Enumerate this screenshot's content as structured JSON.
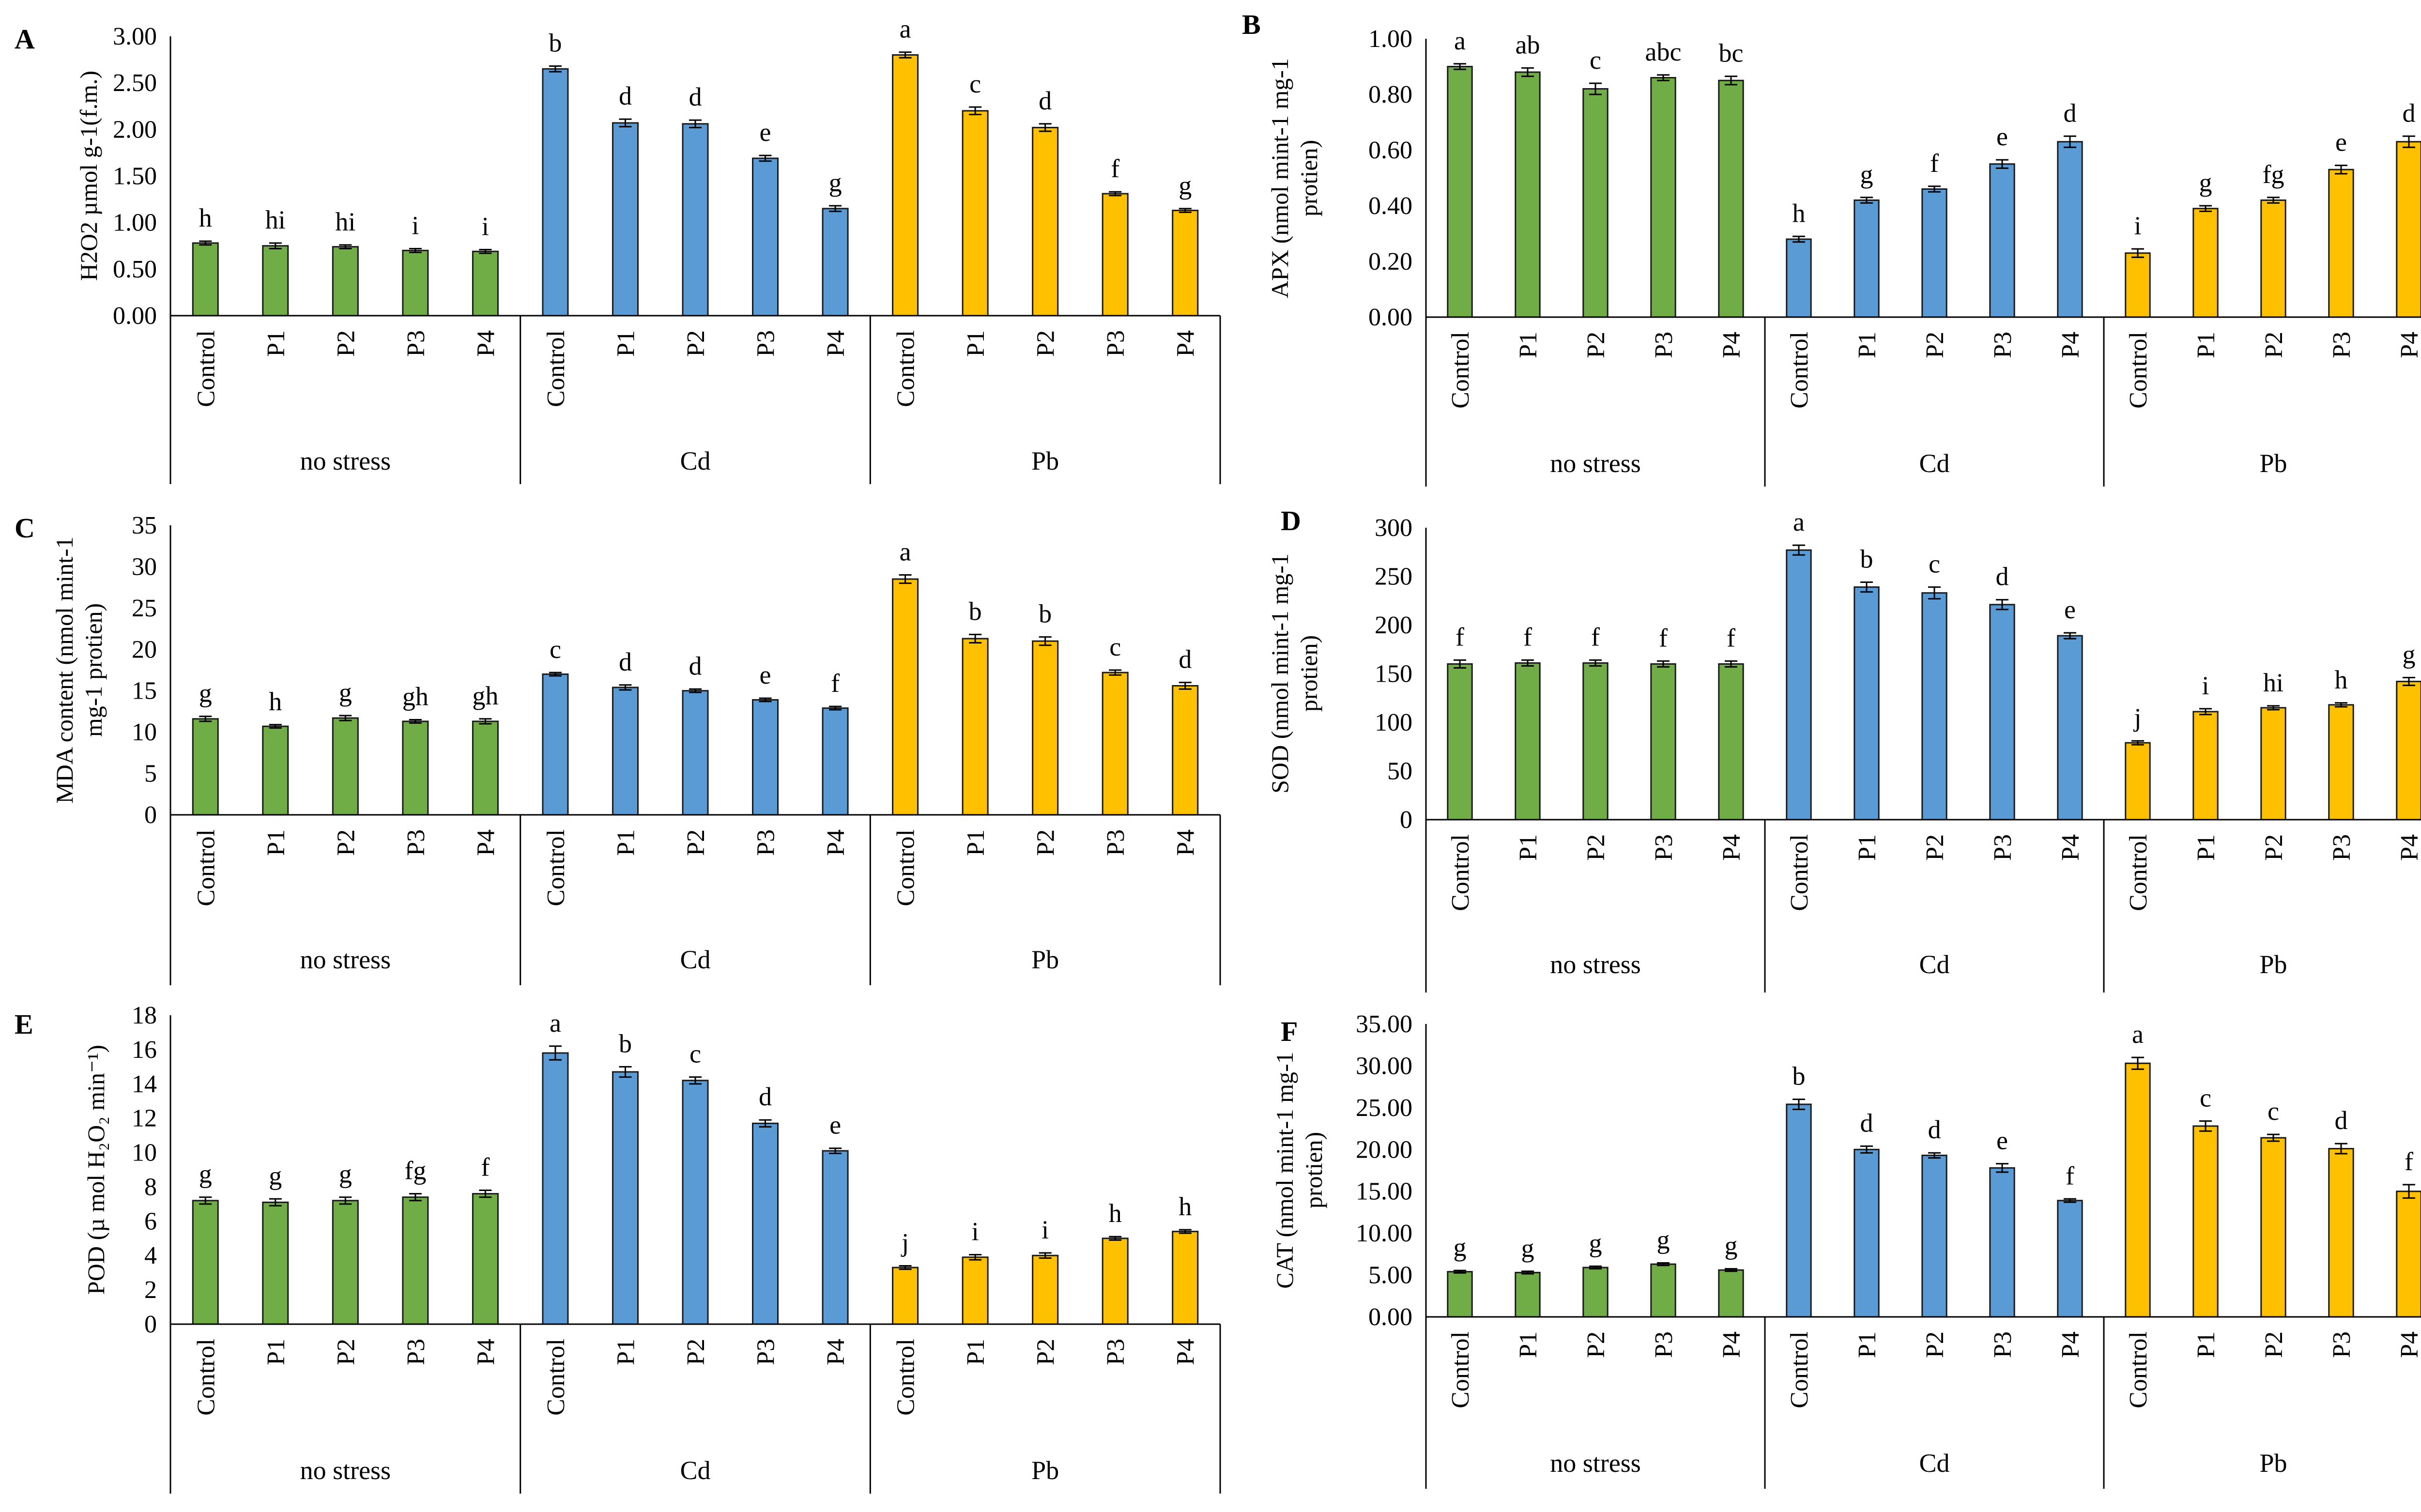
{
  "colors": {
    "no_stress": "#70AD47",
    "Cd": "#5B9BD5",
    "Pb": "#FFC000",
    "bar_edge": "#1a1a1a",
    "axis": "#000000"
  },
  "chart_data": [
    {
      "id": "A",
      "type": "bar",
      "panel_label": "A",
      "ylabel_lines": [
        "H2O2  µmol g-1(f.m.)"
      ],
      "yticks": [
        "0.00",
        "0.50",
        "1.00",
        "1.50",
        "2.00",
        "2.50",
        "3.00"
      ],
      "ylim": [
        0,
        3
      ],
      "categories": [
        "Control",
        "P1",
        "P2",
        "P3",
        "P4"
      ],
      "groups": [
        "no stress",
        "Cd",
        "Pb"
      ],
      "series": [
        {
          "name": "no stress",
          "values": [
            0.78,
            0.75,
            0.74,
            0.7,
            0.69
          ],
          "errors": [
            0.02,
            0.03,
            0.02,
            0.02,
            0.02
          ],
          "letters": [
            "h",
            "hi",
            "hi",
            "i",
            "i"
          ]
        },
        {
          "name": "Cd",
          "values": [
            2.65,
            2.07,
            2.06,
            1.69,
            1.15
          ],
          "errors": [
            0.03,
            0.04,
            0.04,
            0.03,
            0.03
          ],
          "letters": [
            "b",
            "d",
            "d",
            "e",
            "g"
          ]
        },
        {
          "name": "Pb",
          "values": [
            2.8,
            2.2,
            2.02,
            1.31,
            1.13
          ],
          "errors": [
            0.03,
            0.04,
            0.04,
            0.02,
            0.02
          ],
          "letters": [
            "a",
            "c",
            "d",
            "f",
            "g"
          ]
        }
      ]
    },
    {
      "id": "B",
      "type": "bar",
      "panel_label": "B",
      "ylabel_lines": [
        "APX (nmol mint-1 mg-1",
        "protien)"
      ],
      "yticks": [
        "0.00",
        "0.20",
        "0.40",
        "0.60",
        "0.80",
        "1.00"
      ],
      "ylim": [
        0,
        1
      ],
      "categories": [
        "Control",
        "P1",
        "P2",
        "P3",
        "P4"
      ],
      "groups": [
        "no stress",
        "Cd",
        "Pb"
      ],
      "series": [
        {
          "name": "no stress",
          "values": [
            0.9,
            0.88,
            0.82,
            0.86,
            0.85
          ],
          "errors": [
            0.01,
            0.015,
            0.02,
            0.01,
            0.015
          ],
          "letters": [
            "a",
            "ab",
            "c",
            "abc",
            "bc"
          ]
        },
        {
          "name": "Cd",
          "values": [
            0.28,
            0.42,
            0.46,
            0.55,
            0.63
          ],
          "errors": [
            0.01,
            0.01,
            0.01,
            0.015,
            0.02
          ],
          "letters": [
            "h",
            "g",
            "f",
            "e",
            "d"
          ]
        },
        {
          "name": "Pb",
          "values": [
            0.23,
            0.39,
            0.42,
            0.53,
            0.63
          ],
          "errors": [
            0.015,
            0.01,
            0.01,
            0.015,
            0.02
          ],
          "letters": [
            "i",
            "g",
            "fg",
            "e",
            "d"
          ]
        }
      ]
    },
    {
      "id": "C",
      "type": "bar",
      "panel_label": "C",
      "ylabel_lines": [
        "MDA content (nmol mint-1",
        "mg-1 protien)"
      ],
      "yticks": [
        "0",
        "5",
        "10",
        "15",
        "20",
        "25",
        "30",
        "35"
      ],
      "ylim": [
        0,
        35
      ],
      "categories": [
        "Control",
        "P1",
        "P2",
        "P3",
        "P4"
      ],
      "groups": [
        "no stress",
        "Cd",
        "Pb"
      ],
      "series": [
        {
          "name": "no stress",
          "values": [
            11.6,
            10.7,
            11.7,
            11.3,
            11.3
          ],
          "errors": [
            0.3,
            0.2,
            0.3,
            0.2,
            0.3
          ],
          "letters": [
            "g",
            "h",
            "g",
            "gh",
            "gh"
          ]
        },
        {
          "name": "Cd",
          "values": [
            17.0,
            15.4,
            15.0,
            13.9,
            12.9
          ],
          "errors": [
            0.2,
            0.3,
            0.2,
            0.2,
            0.2
          ],
          "letters": [
            "c",
            "d",
            "d",
            "e",
            "f"
          ]
        },
        {
          "name": "Pb",
          "values": [
            28.5,
            21.3,
            21.0,
            17.2,
            15.6
          ],
          "errors": [
            0.5,
            0.5,
            0.5,
            0.3,
            0.4
          ],
          "letters": [
            "a",
            "b",
            "b",
            "c",
            "d"
          ]
        }
      ]
    },
    {
      "id": "D",
      "type": "bar",
      "panel_label": "D",
      "ylabel_lines": [
        "SOD (nmol mint-1 mg-1",
        "protien)"
      ],
      "yticks": [
        "0",
        "50",
        "100",
        "150",
        "200",
        "250",
        "300"
      ],
      "ylim": [
        0,
        300
      ],
      "categories": [
        "Control",
        "P1",
        "P2",
        "P3",
        "P4"
      ],
      "groups": [
        "no stress",
        "Cd",
        "Pb"
      ],
      "series": [
        {
          "name": "no stress",
          "values": [
            160,
            161,
            161,
            160,
            160
          ],
          "errors": [
            4,
            3,
            3,
            3,
            3
          ],
          "letters": [
            "f",
            "f",
            "f",
            "f",
            "f"
          ]
        },
        {
          "name": "Cd",
          "values": [
            277,
            239,
            233,
            221,
            189
          ],
          "errors": [
            5,
            5,
            6,
            5,
            3
          ],
          "letters": [
            "a",
            "b",
            "c",
            "d",
            "e"
          ]
        },
        {
          "name": "Pb",
          "values": [
            79,
            111,
            115,
            118,
            142
          ],
          "errors": [
            2,
            3,
            2,
            2,
            4
          ],
          "letters": [
            "j",
            "i",
            "hi",
            "h",
            "g"
          ]
        }
      ]
    },
    {
      "id": "E",
      "type": "bar",
      "panel_label": "E",
      "ylabel_lines": [
        "POD (µ mol H₂O₂ min⁻¹)"
      ],
      "yticks": [
        "0",
        "2",
        "4",
        "6",
        "8",
        "10",
        "12",
        "14",
        "16",
        "18"
      ],
      "ylim": [
        0,
        18
      ],
      "categories": [
        "Control",
        "P1",
        "P2",
        "P3",
        "P4"
      ],
      "groups": [
        "no stress",
        "Cd",
        "Pb"
      ],
      "series": [
        {
          "name": "no stress",
          "values": [
            7.2,
            7.1,
            7.2,
            7.4,
            7.6
          ],
          "errors": [
            0.2,
            0.2,
            0.2,
            0.2,
            0.2
          ],
          "letters": [
            "g",
            "g",
            "g",
            "fg",
            "f"
          ]
        },
        {
          "name": "Cd",
          "values": [
            15.8,
            14.7,
            14.2,
            11.7,
            10.1
          ],
          "errors": [
            0.4,
            0.3,
            0.2,
            0.2,
            0.15
          ],
          "letters": [
            "a",
            "b",
            "c",
            "d",
            "e"
          ]
        },
        {
          "name": "Pb",
          "values": [
            3.3,
            3.9,
            4.0,
            5.0,
            5.4
          ],
          "errors": [
            0.1,
            0.15,
            0.15,
            0.1,
            0.1
          ],
          "letters": [
            "j",
            "i",
            "i",
            "h",
            "h"
          ]
        }
      ]
    },
    {
      "id": "F",
      "type": "bar",
      "panel_label": "F",
      "ylabel_lines": [
        "CAT (nmol mint-1 mg-1",
        "protien)"
      ],
      "yticks": [
        "0.00",
        "5.00",
        "10.00",
        "15.00",
        "20.00",
        "25.00",
        "30.00",
        "35.00"
      ],
      "ylim": [
        0,
        35
      ],
      "categories": [
        "Control",
        "P1",
        "P2",
        "P3",
        "P4"
      ],
      "groups": [
        "no stress",
        "Cd",
        "Pb"
      ],
      "series": [
        {
          "name": "no stress",
          "values": [
            5.4,
            5.3,
            5.9,
            6.3,
            5.6
          ],
          "errors": [
            0.15,
            0.15,
            0.15,
            0.15,
            0.15
          ],
          "letters": [
            "g",
            "g",
            "g",
            "g",
            "g"
          ]
        },
        {
          "name": "Cd",
          "values": [
            25.4,
            20.0,
            19.3,
            17.8,
            13.9
          ],
          "errors": [
            0.6,
            0.4,
            0.3,
            0.5,
            0.2
          ],
          "letters": [
            "b",
            "d",
            "d",
            "e",
            "f"
          ]
        },
        {
          "name": "Pb",
          "values": [
            30.3,
            22.8,
            21.4,
            20.1,
            15.0
          ],
          "errors": [
            0.7,
            0.6,
            0.4,
            0.6,
            0.8
          ],
          "letters": [
            "a",
            "c",
            "c",
            "d",
            "f"
          ]
        }
      ]
    }
  ]
}
